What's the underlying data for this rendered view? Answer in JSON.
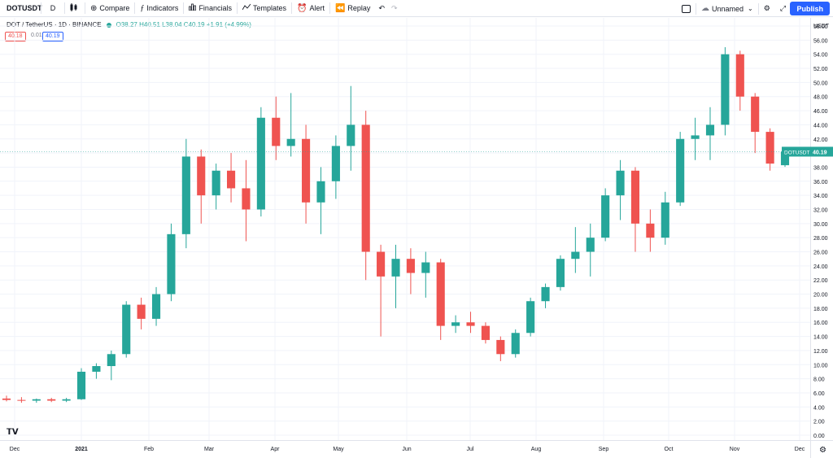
{
  "toolbar": {
    "symbol": "DOTUSDT",
    "interval": "D",
    "compare": "Compare",
    "indicators": "Indicators",
    "financials": "Financials",
    "templates": "Templates",
    "alert": "Alert",
    "replay": "Replay",
    "layout_name": "Unnamed",
    "publish": "Publish"
  },
  "legend": {
    "title": "DOT / TetherUS · 1D · BINANCE",
    "ohlc": "O38.27 H40.51 L38.04 C40.19 +1.91 (+4.99%)",
    "bid": "40.18",
    "spread": "0.01",
    "ask": "40.19"
  },
  "axis": {
    "currency": "USDT",
    "price_ticks": [
      "58.00",
      "56.00",
      "54.00",
      "52.00",
      "50.00",
      "48.00",
      "46.00",
      "44.00",
      "42.00",
      "40.00",
      "38.00",
      "36.00",
      "34.00",
      "32.00",
      "30.00",
      "28.00",
      "26.00",
      "24.00",
      "22.00",
      "20.00",
      "18.00",
      "16.00",
      "14.00",
      "12.00",
      "10.00",
      "8.00",
      "6.00",
      "4.00",
      "2.00",
      "0.00"
    ],
    "time_ticks": [
      "Dec",
      "2021",
      "Feb",
      "Mar",
      "Apr",
      "May",
      "Jun",
      "Jul",
      "Aug",
      "Sep",
      "Oct",
      "Nov",
      "Dec"
    ],
    "last_price_label": "DOTUSDT",
    "last_price": "40.19"
  },
  "colors": {
    "up": "#26a69a",
    "down": "#ef5350",
    "accent": "#2962ff"
  },
  "chart_data": {
    "type": "candlestick",
    "symbol": "DOTUSDT",
    "interval": "1D",
    "ylim": [
      0,
      58
    ],
    "ytick_step": 2,
    "x": [
      "2020-11-29",
      "2020-12-06",
      "2020-12-13",
      "2020-12-20",
      "2020-12-27",
      "2021-01-03",
      "2021-01-10",
      "2021-01-17",
      "2021-01-24",
      "2021-01-31",
      "2021-02-07",
      "2021-02-14",
      "2021-02-21",
      "2021-02-28",
      "2021-03-07",
      "2021-03-14",
      "2021-03-21",
      "2021-03-28",
      "2021-04-04",
      "2021-04-11",
      "2021-04-18",
      "2021-04-25",
      "2021-05-02",
      "2021-05-09",
      "2021-05-16",
      "2021-05-23",
      "2021-05-30",
      "2021-06-06",
      "2021-06-13",
      "2021-06-20",
      "2021-06-27",
      "2021-07-04",
      "2021-07-11",
      "2021-07-18",
      "2021-07-25",
      "2021-08-01",
      "2021-08-08",
      "2021-08-15",
      "2021-08-22",
      "2021-08-29",
      "2021-09-05",
      "2021-09-12",
      "2021-09-19",
      "2021-09-26",
      "2021-10-03",
      "2021-10-10",
      "2021-10-17",
      "2021-10-24",
      "2021-10-31",
      "2021-11-07",
      "2021-11-14",
      "2021-11-21",
      "2021-11-28"
    ],
    "series": [
      {
        "values": [
          {
            "o": 5.2,
            "h": 5.6,
            "l": 4.8,
            "c": 5.0
          },
          {
            "o": 5.0,
            "h": 5.4,
            "l": 4.6,
            "c": 4.9
          },
          {
            "o": 4.9,
            "h": 5.2,
            "l": 4.6,
            "c": 5.1
          },
          {
            "o": 5.1,
            "h": 5.3,
            "l": 4.7,
            "c": 4.9
          },
          {
            "o": 4.9,
            "h": 5.3,
            "l": 4.7,
            "c": 5.1
          },
          {
            "o": 5.1,
            "h": 9.5,
            "l": 5.0,
            "c": 9.0
          },
          {
            "o": 9.0,
            "h": 10.2,
            "l": 8.0,
            "c": 9.8
          },
          {
            "o": 9.8,
            "h": 12.0,
            "l": 7.8,
            "c": 11.5
          },
          {
            "o": 11.5,
            "h": 19.0,
            "l": 11.0,
            "c": 18.5
          },
          {
            "o": 18.5,
            "h": 19.5,
            "l": 15.0,
            "c": 16.5
          },
          {
            "o": 16.5,
            "h": 21.0,
            "l": 15.5,
            "c": 20.0
          },
          {
            "o": 20.0,
            "h": 30.0,
            "l": 19.0,
            "c": 28.5
          },
          {
            "o": 28.5,
            "h": 42.0,
            "l": 26.5,
            "c": 39.5
          },
          {
            "o": 39.5,
            "h": 40.5,
            "l": 30.0,
            "c": 34.0
          },
          {
            "o": 34.0,
            "h": 38.5,
            "l": 32.0,
            "c": 37.5
          },
          {
            "o": 37.5,
            "h": 40.0,
            "l": 33.0,
            "c": 35.0
          },
          {
            "o": 35.0,
            "h": 39.0,
            "l": 27.5,
            "c": 32.0
          },
          {
            "o": 32.0,
            "h": 46.5,
            "l": 31.0,
            "c": 45.0
          },
          {
            "o": 45.0,
            "h": 48.0,
            "l": 39.0,
            "c": 41.0
          },
          {
            "o": 41.0,
            "h": 48.5,
            "l": 39.5,
            "c": 42.0
          },
          {
            "o": 42.0,
            "h": 44.0,
            "l": 30.0,
            "c": 33.0
          },
          {
            "o": 33.0,
            "h": 38.0,
            "l": 28.5,
            "c": 36.0
          },
          {
            "o": 36.0,
            "h": 42.5,
            "l": 33.5,
            "c": 41.0
          },
          {
            "o": 41.0,
            "h": 49.5,
            "l": 37.5,
            "c": 44.0
          },
          {
            "o": 44.0,
            "h": 46.0,
            "l": 22.0,
            "c": 26.0
          },
          {
            "o": 26.0,
            "h": 27.0,
            "l": 14.0,
            "c": 22.5
          },
          {
            "o": 22.5,
            "h": 27.0,
            "l": 18.0,
            "c": 25.0
          },
          {
            "o": 25.0,
            "h": 26.5,
            "l": 20.0,
            "c": 23.0
          },
          {
            "o": 23.0,
            "h": 26.0,
            "l": 19.5,
            "c": 24.5
          },
          {
            "o": 24.5,
            "h": 25.0,
            "l": 13.5,
            "c": 15.5
          },
          {
            "o": 15.5,
            "h": 17.0,
            "l": 14.5,
            "c": 16.0
          },
          {
            "o": 16.0,
            "h": 17.5,
            "l": 14.5,
            "c": 15.5
          },
          {
            "o": 15.5,
            "h": 16.0,
            "l": 13.0,
            "c": 13.5
          },
          {
            "o": 13.5,
            "h": 14.0,
            "l": 10.5,
            "c": 11.5
          },
          {
            "o": 11.5,
            "h": 15.0,
            "l": 11.0,
            "c": 14.5
          },
          {
            "o": 14.5,
            "h": 19.5,
            "l": 14.0,
            "c": 19.0
          },
          {
            "o": 19.0,
            "h": 21.5,
            "l": 18.0,
            "c": 21.0
          },
          {
            "o": 21.0,
            "h": 25.5,
            "l": 20.5,
            "c": 25.0
          },
          {
            "o": 25.0,
            "h": 29.5,
            "l": 23.0,
            "c": 26.0
          },
          {
            "o": 26.0,
            "h": 30.0,
            "l": 22.5,
            "c": 28.0
          },
          {
            "o": 28.0,
            "h": 35.0,
            "l": 27.5,
            "c": 34.0
          },
          {
            "o": 34.0,
            "h": 39.0,
            "l": 30.5,
            "c": 37.5
          },
          {
            "o": 37.5,
            "h": 38.0,
            "l": 26.0,
            "c": 30.0
          },
          {
            "o": 30.0,
            "h": 32.0,
            "l": 26.0,
            "c": 28.0
          },
          {
            "o": 28.0,
            "h": 34.5,
            "l": 27.0,
            "c": 33.0
          },
          {
            "o": 33.0,
            "h": 43.0,
            "l": 32.5,
            "c": 42.0
          },
          {
            "o": 42.0,
            "h": 45.0,
            "l": 39.0,
            "c": 42.5
          },
          {
            "o": 42.5,
            "h": 46.5,
            "l": 39.0,
            "c": 44.0
          },
          {
            "o": 44.0,
            "h": 55.0,
            "l": 42.5,
            "c": 54.0
          },
          {
            "o": 54.0,
            "h": 54.5,
            "l": 46.0,
            "c": 48.0
          },
          {
            "o": 48.0,
            "h": 48.5,
            "l": 40.0,
            "c": 43.0
          },
          {
            "o": 43.0,
            "h": 43.5,
            "l": 37.5,
            "c": 38.5
          },
          {
            "o": 38.27,
            "h": 40.51,
            "l": 38.04,
            "c": 40.19
          }
        ]
      }
    ],
    "last_price": 40.19
  }
}
